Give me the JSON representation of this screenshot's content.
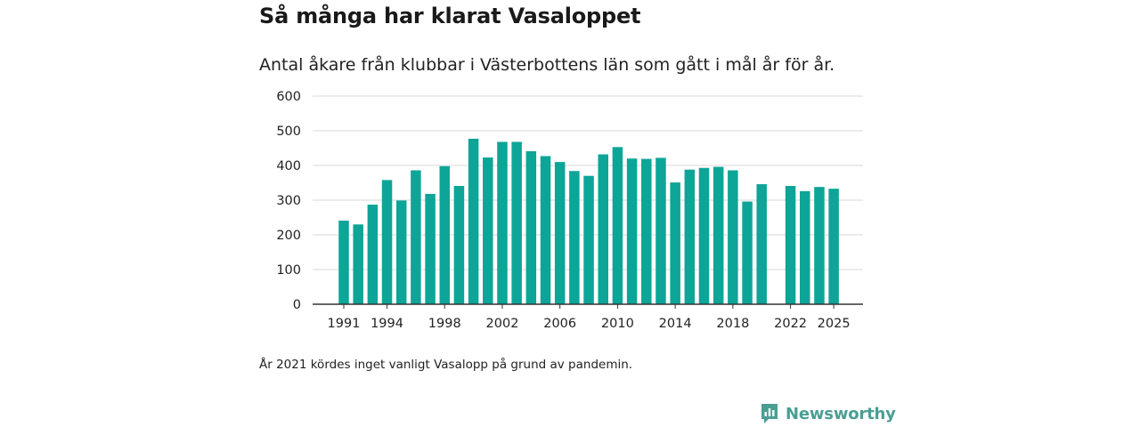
{
  "header": {
    "title": "Så många har klarat Vasaloppet",
    "subtitle": "Antal åkare från klubbar i Västerbottens län som gått i mål år för år."
  },
  "footer": {
    "note": "År 2021 kördes inget vanligt Vasalopp på grund av pandemin.",
    "brand": "Newsworthy",
    "brand_icon": "newsworthy-logo-icon"
  },
  "colors": {
    "bar": "#0da597",
    "grid": "#d9d9d9",
    "axis": "#333333",
    "brand": "#4a9e93"
  },
  "chart_data": {
    "type": "bar",
    "title": "Så många har klarat Vasaloppet",
    "subtitle": "Antal åkare från klubbar i Västerbottens län som gått i mål år för år.",
    "xlabel": "",
    "ylabel": "",
    "ylim": [
      0,
      600
    ],
    "yticks": [
      0,
      100,
      200,
      300,
      400,
      500,
      600
    ],
    "xtick_labels": [
      "1991",
      "1994",
      "1998",
      "2002",
      "2006",
      "2010",
      "2014",
      "2018",
      "2022",
      "2025"
    ],
    "grid": true,
    "categories": [
      1991,
      1992,
      1993,
      1994,
      1995,
      1996,
      1997,
      1998,
      1999,
      2000,
      2001,
      2002,
      2003,
      2004,
      2005,
      2006,
      2007,
      2008,
      2009,
      2010,
      2011,
      2012,
      2013,
      2014,
      2015,
      2016,
      2017,
      2018,
      2019,
      2020,
      2021,
      2022,
      2023,
      2024,
      2025
    ],
    "values": [
      241,
      230,
      287,
      358,
      299,
      386,
      318,
      398,
      341,
      477,
      423,
      468,
      468,
      441,
      427,
      410,
      384,
      370,
      432,
      453,
      420,
      419,
      422,
      351,
      388,
      393,
      396,
      386,
      296,
      346,
      null,
      341,
      326,
      338,
      333
    ]
  }
}
